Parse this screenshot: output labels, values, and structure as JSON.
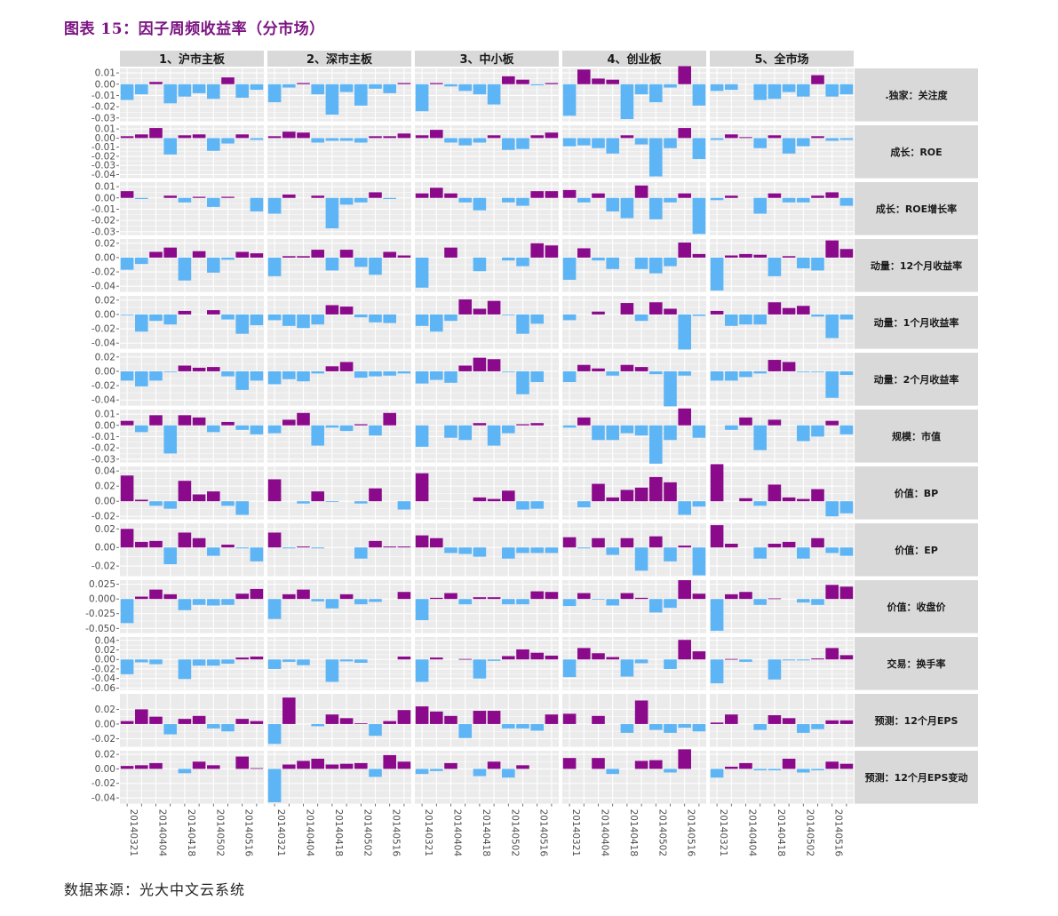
{
  "title": "图表 15：因子周频收益率（分市场）",
  "source": "数据来源：光大中文云系统",
  "colors": {
    "positive": "#8b0a8b",
    "negative": "#5eb5f5",
    "panel_bg": "#ebebeb",
    "strip_bg": "#d9d9d9",
    "grid": "#ffffff"
  },
  "chart_data": {
    "type": "bar",
    "layout": "facet_grid",
    "x": [
      "20140321",
      "20140328",
      "20140404",
      "20140411",
      "20140418",
      "20140425",
      "20140502",
      "20140509",
      "20140516",
      "20140523"
    ],
    "columns": [
      "1、沪市主板",
      "2、深市主板",
      "3、中小板",
      "4、创业板",
      "5、全市场"
    ],
    "rows": [
      {
        "label": ".独家：关注度",
        "ticks": [
          0.01,
          0.0,
          -0.01,
          -0.02,
          -0.03
        ],
        "tick_labels": [
          "0.01",
          "0.00",
          "-0.01",
          "-0.02",
          "-0.03"
        ],
        "ylim": [
          -0.033,
          0.014
        ],
        "series": [
          [
            -0.014,
            -0.009,
            0.002,
            -0.017,
            -0.011,
            -0.008,
            -0.013,
            0.006,
            -0.012,
            -0.005
          ],
          [
            -0.016,
            -0.003,
            0.001,
            -0.009,
            -0.027,
            -0.007,
            -0.019,
            -0.004,
            -0.008,
            0.001
          ],
          [
            -0.024,
            0.001,
            -0.002,
            -0.006,
            -0.009,
            -0.018,
            0.007,
            0.004,
            -0.001,
            0.001
          ],
          [
            -0.028,
            0.013,
            0.005,
            0.004,
            -0.031,
            -0.009,
            -0.016,
            -0.003,
            0.016,
            -0.019
          ],
          [
            -0.006,
            -0.005,
            0.0,
            -0.014,
            -0.013,
            -0.007,
            -0.011,
            0.008,
            -0.011,
            -0.009
          ]
        ]
      },
      {
        "label": "成长：ROE",
        "ticks": [
          0.01,
          0.0,
          -0.01,
          -0.02,
          -0.03,
          -0.04
        ],
        "tick_labels": [
          "0.01",
          "0.00",
          "-0.01",
          "-0.02",
          "-0.03",
          "-0.04"
        ],
        "ylim": [
          -0.044,
          0.014
        ],
        "series": [
          [
            0.002,
            0.004,
            0.011,
            -0.018,
            0.003,
            0.004,
            -0.014,
            -0.006,
            0.004,
            -0.002
          ],
          [
            0.002,
            0.007,
            0.006,
            -0.005,
            -0.003,
            -0.003,
            -0.005,
            0.002,
            0.002,
            0.005
          ],
          [
            0.003,
            0.009,
            -0.005,
            -0.008,
            -0.005,
            0.003,
            -0.013,
            -0.012,
            0.003,
            0.006
          ],
          [
            -0.009,
            -0.008,
            -0.011,
            -0.017,
            0.003,
            -0.007,
            -0.042,
            -0.011,
            0.011,
            -0.023
          ],
          [
            -0.002,
            0.004,
            0.001,
            -0.011,
            0.003,
            -0.017,
            -0.009,
            0.002,
            -0.003,
            -0.002
          ]
        ]
      },
      {
        "label": "成长：ROE增长率",
        "ticks": [
          0.01,
          0.0,
          -0.01,
          -0.02,
          -0.03
        ],
        "tick_labels": [
          "0.01",
          "0.00",
          "-0.01",
          "-0.02",
          "-0.03"
        ],
        "ylim": [
          -0.033,
          0.014
        ],
        "series": [
          [
            0.006,
            -0.001,
            0.0,
            0.002,
            -0.004,
            0.001,
            -0.008,
            0.001,
            0.0,
            -0.012
          ],
          [
            -0.014,
            0.003,
            0.0,
            0.002,
            -0.027,
            -0.006,
            -0.004,
            0.005,
            -0.001,
            0.0
          ],
          [
            0.004,
            0.009,
            0.004,
            -0.004,
            -0.011,
            0.0,
            -0.004,
            -0.007,
            0.006,
            0.006
          ],
          [
            0.007,
            -0.004,
            0.004,
            -0.012,
            -0.018,
            0.011,
            -0.019,
            -0.004,
            0.004,
            -0.032
          ],
          [
            -0.002,
            0.002,
            0.0,
            -0.014,
            0.004,
            -0.004,
            -0.004,
            0.002,
            0.005,
            -0.007
          ]
        ]
      },
      {
        "label": "动量：12个月收益率",
        "ticks": [
          0.02,
          0.0,
          -0.02,
          -0.04
        ],
        "tick_labels": [
          "0.02",
          "0.00",
          "-0.02",
          "-0.04"
        ],
        "ylim": [
          -0.048,
          0.026
        ],
        "series": [
          [
            -0.017,
            -0.009,
            0.008,
            0.014,
            -0.032,
            0.009,
            -0.021,
            -0.003,
            0.008,
            0.006
          ],
          [
            -0.026,
            0.002,
            0.002,
            0.011,
            -0.018,
            0.011,
            -0.013,
            -0.024,
            0.008,
            0.003
          ],
          [
            -0.042,
            0.0,
            0.014,
            0.0,
            -0.019,
            0.0,
            -0.004,
            -0.012,
            0.02,
            0.017
          ],
          [
            -0.031,
            0.013,
            -0.004,
            -0.016,
            0.0,
            -0.016,
            -0.022,
            -0.012,
            0.021,
            0.005
          ],
          [
            -0.046,
            0.003,
            0.005,
            0.004,
            -0.026,
            0.002,
            -0.015,
            -0.018,
            0.024,
            0.012
          ]
        ]
      },
      {
        "label": "动量：1个月收益率",
        "ticks": [
          0.02,
          0.0,
          -0.02,
          -0.04
        ],
        "tick_labels": [
          "0.02",
          "0.00",
          "-0.02",
          "-0.04"
        ],
        "ylim": [
          -0.048,
          0.026
        ],
        "series": [
          [
            -0.001,
            -0.024,
            -0.009,
            -0.014,
            0.005,
            0.0,
            0.006,
            -0.007,
            -0.027,
            -0.015
          ],
          [
            -0.008,
            -0.016,
            -0.019,
            -0.014,
            0.013,
            0.011,
            -0.004,
            -0.011,
            -0.012,
            0.0
          ],
          [
            -0.016,
            -0.024,
            -0.009,
            0.021,
            0.008,
            0.019,
            -0.001,
            -0.027,
            -0.013,
            0.0
          ],
          [
            -0.008,
            0.0,
            0.004,
            0.0,
            0.016,
            -0.009,
            0.017,
            0.008,
            -0.049,
            -0.002
          ],
          [
            0.005,
            -0.016,
            -0.014,
            -0.014,
            0.017,
            0.009,
            0.012,
            -0.003,
            -0.033,
            -0.007
          ]
        ]
      },
      {
        "label": "动量：2个月收益率",
        "ticks": [
          0.02,
          0.0,
          -0.02,
          -0.04
        ],
        "tick_labels": [
          "0.02",
          "0.00",
          "-0.02",
          "-0.04"
        ],
        "ylim": [
          -0.048,
          0.026
        ],
        "series": [
          [
            -0.013,
            -0.021,
            -0.013,
            -0.001,
            0.008,
            0.005,
            0.006,
            -0.007,
            -0.026,
            -0.013
          ],
          [
            -0.018,
            -0.011,
            -0.014,
            -0.003,
            0.007,
            0.013,
            -0.009,
            -0.007,
            -0.006,
            -0.003
          ],
          [
            -0.017,
            -0.012,
            -0.016,
            0.008,
            0.019,
            0.017,
            -0.001,
            -0.032,
            -0.015,
            0.0
          ],
          [
            -0.015,
            0.009,
            0.004,
            -0.006,
            0.009,
            0.006,
            -0.004,
            -0.049,
            -0.006,
            0.0
          ],
          [
            -0.013,
            -0.013,
            -0.008,
            -0.003,
            0.016,
            0.013,
            -0.001,
            -0.001,
            -0.037,
            -0.005
          ]
        ]
      },
      {
        "label": "规模：市值",
        "ticks": [
          0.01,
          0.0,
          -0.01,
          -0.02,
          -0.03
        ],
        "tick_labels": [
          "0.01",
          "0.00",
          "-0.01",
          "-0.02",
          "-0.03"
        ],
        "ylim": [
          -0.033,
          0.014
        ],
        "series": [
          [
            0.004,
            -0.006,
            0.009,
            -0.025,
            0.009,
            0.007,
            -0.006,
            0.003,
            -0.004,
            -0.008
          ],
          [
            -0.007,
            0.005,
            0.011,
            -0.018,
            -0.002,
            -0.005,
            0.001,
            -0.009,
            0.011,
            0.0
          ],
          [
            -0.019,
            0.0,
            -0.011,
            -0.013,
            0.002,
            -0.018,
            -0.007,
            0.001,
            0.002,
            0.0
          ],
          [
            -0.002,
            0.007,
            -0.013,
            -0.013,
            -0.007,
            -0.009,
            -0.034,
            -0.013,
            0.015,
            -0.011
          ],
          [
            0.0,
            -0.004,
            0.007,
            -0.022,
            0.005,
            0.0,
            -0.014,
            -0.01,
            0.004,
            -0.008
          ]
        ]
      },
      {
        "label": "价值：BP",
        "ticks": [
          0.04,
          0.02,
          0.0,
          -0.02
        ],
        "tick_labels": [
          "0.04",
          "0.02",
          "0.00",
          "-0.02"
        ],
        "ylim": [
          -0.024,
          0.046
        ],
        "series": [
          [
            0.034,
            0.002,
            -0.006,
            -0.01,
            0.027,
            0.009,
            0.013,
            -0.006,
            -0.018,
            0.0
          ],
          [
            0.029,
            0.0,
            -0.003,
            0.013,
            -0.001,
            0.0,
            -0.003,
            0.017,
            0.0,
            -0.011
          ],
          [
            0.037,
            0.0,
            0.0,
            0.0,
            0.005,
            0.003,
            0.014,
            -0.011,
            -0.01,
            0.0
          ],
          [
            0.0,
            -0.008,
            0.023,
            0.005,
            0.015,
            0.018,
            0.032,
            0.025,
            -0.018,
            -0.007
          ],
          [
            0.049,
            0.0,
            0.004,
            -0.006,
            0.022,
            0.005,
            0.003,
            0.016,
            -0.02,
            -0.016
          ]
        ]
      },
      {
        "label": "价值：EP",
        "ticks": [
          0.02,
          0.0,
          -0.02
        ],
        "tick_labels": [
          "0.02",
          "0.00",
          "-0.02"
        ],
        "ylim": [
          -0.031,
          0.026
        ],
        "series": [
          [
            0.02,
            0.006,
            0.007,
            -0.018,
            0.016,
            0.01,
            -0.009,
            0.003,
            -0.001,
            -0.015
          ],
          [
            0.016,
            -0.001,
            0.001,
            -0.001,
            0.0,
            0.0,
            -0.012,
            0.007,
            0.001,
            0.001
          ],
          [
            0.013,
            0.01,
            -0.006,
            -0.007,
            -0.01,
            0.0,
            -0.012,
            -0.006,
            -0.006,
            -0.006
          ],
          [
            0.011,
            -0.001,
            0.01,
            -0.008,
            0.01,
            -0.025,
            0.012,
            -0.015,
            0.002,
            -0.03
          ],
          [
            0.024,
            0.004,
            0.0,
            -0.012,
            0.004,
            0.006,
            -0.012,
            0.01,
            -0.006,
            -0.009
          ]
        ]
      },
      {
        "label": "价值：收盘价",
        "ticks": [
          0.025,
          0.0,
          -0.025,
          -0.05
        ],
        "tick_labels": [
          "0.025",
          "0.000",
          "-0.025",
          "-0.050"
        ],
        "ylim": [
          -0.058,
          0.032
        ],
        "series": [
          [
            -0.041,
            0.004,
            0.016,
            0.008,
            -0.019,
            -0.01,
            -0.011,
            -0.01,
            0.009,
            0.017
          ],
          [
            -0.034,
            0.008,
            0.016,
            -0.004,
            -0.016,
            0.008,
            -0.009,
            -0.005,
            0.0,
            0.012
          ],
          [
            -0.036,
            0.002,
            0.01,
            -0.009,
            0.003,
            0.003,
            -0.009,
            -0.009,
            0.013,
            0.012
          ],
          [
            -0.012,
            0.01,
            -0.001,
            -0.011,
            0.01,
            0.002,
            -0.023,
            -0.015,
            0.032,
            0.009
          ],
          [
            -0.054,
            0.008,
            0.012,
            -0.01,
            0.001,
            0.0,
            -0.006,
            -0.01,
            0.024,
            0.021
          ]
        ]
      },
      {
        "label": "交易：换手率",
        "ticks": [
          0.04,
          0.02,
          0.0,
          -0.02,
          -0.04,
          -0.06
        ],
        "tick_labels": [
          "0.04",
          "0.02",
          "0.00",
          "-0.02",
          "-0.04",
          "-0.06"
        ],
        "ylim": [
          -0.064,
          0.047
        ],
        "series": [
          [
            -0.031,
            -0.006,
            -0.01,
            0.0,
            -0.041,
            -0.013,
            -0.013,
            -0.009,
            0.004,
            0.006
          ],
          [
            -0.02,
            -0.005,
            -0.012,
            0.0,
            -0.047,
            -0.004,
            -0.007,
            0.0,
            0.0,
            0.006
          ],
          [
            -0.047,
            0.004,
            0.0,
            0.001,
            -0.04,
            -0.003,
            0.007,
            0.021,
            0.014,
            0.008
          ],
          [
            -0.037,
            0.024,
            0.013,
            0.005,
            -0.036,
            -0.008,
            0.0,
            -0.02,
            0.041,
            0.017
          ],
          [
            -0.05,
            0.001,
            -0.005,
            0.0,
            -0.042,
            -0.002,
            -0.002,
            0.002,
            0.024,
            0.009
          ]
        ]
      },
      {
        "label": "预测：12个月EPS",
        "ticks": [
          0.02,
          0.0,
          -0.02
        ],
        "tick_labels": [
          "0.02",
          "0.00",
          "-0.02"
        ],
        "ylim": [
          -0.031,
          0.041
        ],
        "series": [
          [
            0.004,
            0.02,
            0.01,
            -0.014,
            0.007,
            0.011,
            -0.006,
            -0.01,
            0.007,
            0.004
          ],
          [
            -0.027,
            0.036,
            0.0,
            -0.003,
            0.013,
            0.008,
            0.001,
            -0.016,
            0.004,
            0.019
          ],
          [
            0.024,
            0.017,
            0.011,
            -0.019,
            0.018,
            0.018,
            -0.006,
            -0.006,
            -0.009,
            0.013
          ],
          [
            0.014,
            0.0,
            0.011,
            0.0,
            -0.012,
            0.032,
            -0.008,
            -0.012,
            -0.005,
            -0.01
          ],
          [
            0.002,
            0.013,
            0.0,
            -0.008,
            0.012,
            0.008,
            -0.012,
            -0.007,
            0.005,
            0.005
          ]
        ]
      },
      {
        "label": "预测：12个月EPS变动",
        "ticks": [
          0.02,
          0.0,
          -0.02,
          -0.04
        ],
        "tick_labels": [
          "0.02",
          "0.00",
          "-0.02",
          "-0.04"
        ],
        "ylim": [
          -0.048,
          0.025
        ],
        "series": [
          [
            0.004,
            0.005,
            0.008,
            0.0,
            -0.006,
            0.01,
            0.005,
            0.0,
            0.017,
            0.001
          ],
          [
            -0.046,
            0.006,
            0.011,
            0.014,
            0.006,
            0.007,
            0.008,
            -0.011,
            0.019,
            0.01
          ],
          [
            -0.007,
            -0.003,
            0.008,
            0.0,
            -0.01,
            0.01,
            -0.012,
            0.005,
            0.0,
            0.0
          ],
          [
            0.015,
            0.0,
            0.015,
            -0.007,
            0.0,
            0.011,
            0.012,
            -0.005,
            0.027,
            0.0
          ],
          [
            -0.012,
            0.003,
            0.008,
            -0.002,
            -0.002,
            0.014,
            -0.005,
            -0.002,
            0.01,
            0.007
          ]
        ]
      }
    ]
  }
}
